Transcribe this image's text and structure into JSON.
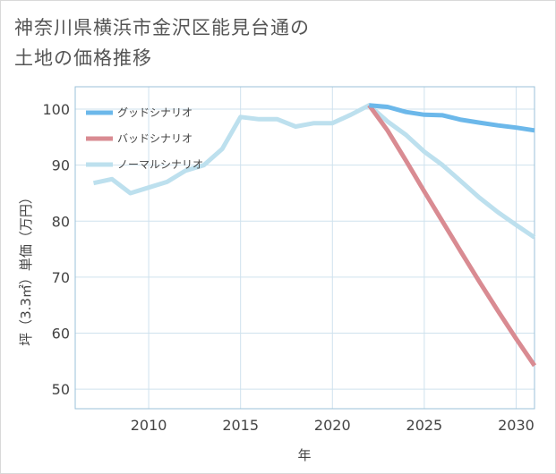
{
  "title_lines": [
    "神奈川県横浜市金沢区能見台通の",
    "土地の価格推移"
  ],
  "chart_data": {
    "type": "line",
    "title": "神奈川県横浜市金沢区能見台通の土地の価格推移",
    "xlabel": "年",
    "ylabel": "坪（3.3㎡）単価（万円）",
    "xlim": [
      2006,
      2031
    ],
    "ylim": [
      46.5,
      104
    ],
    "xticks": [
      2010,
      2015,
      2020,
      2025,
      2030
    ],
    "yticks": [
      50,
      60,
      70,
      80,
      90,
      100
    ],
    "grid": true,
    "legend_position": "top-left",
    "series": [
      {
        "name": "グッドシナリオ",
        "color": "#6cb8ea",
        "x": [
          2022,
          2023,
          2024,
          2025,
          2026,
          2027,
          2028,
          2029,
          2030,
          2031
        ],
        "y": [
          100.7,
          100.4,
          99.5,
          99.0,
          98.9,
          98.1,
          97.6,
          97.1,
          96.7,
          96.2
        ]
      },
      {
        "name": "バッドシナリオ",
        "color": "#d98b92",
        "x": [
          2022,
          2023,
          2024,
          2025,
          2026,
          2027,
          2028,
          2029,
          2030,
          2031
        ],
        "y": [
          100.7,
          96.2,
          90.8,
          85.3,
          79.9,
          74.5,
          69.2,
          64.0,
          59.0,
          54.2
        ]
      },
      {
        "name": "ノーマルシナリオ",
        "color": "#bde0ee",
        "x": [
          2007,
          2008,
          2009,
          2010,
          2011,
          2012,
          2013,
          2014,
          2015,
          2016,
          2017,
          2018,
          2019,
          2020,
          2021,
          2022,
          2023,
          2024,
          2025,
          2026,
          2027,
          2028,
          2029,
          2030,
          2031
        ],
        "y": [
          86.8,
          87.5,
          85.0,
          86.0,
          87.0,
          89.0,
          90.0,
          92.9,
          98.6,
          98.2,
          98.2,
          96.9,
          97.5,
          97.5,
          99.0,
          100.7,
          97.8,
          95.4,
          92.4,
          90.0,
          87.1,
          84.2,
          81.6,
          79.3,
          77.1
        ]
      }
    ]
  }
}
